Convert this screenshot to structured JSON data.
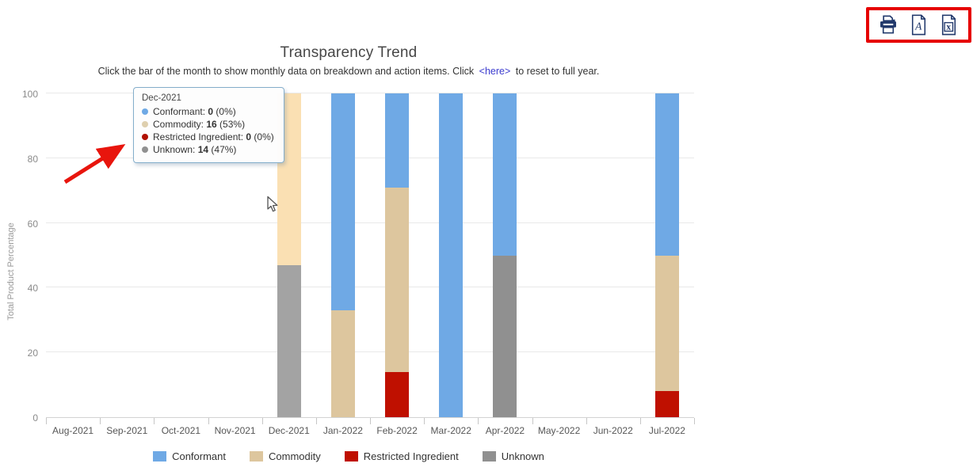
{
  "chart_data": {
    "type": "bar",
    "stacked": true,
    "title": "Transparency Trend",
    "ylabel": "Total Product Percentage",
    "xlabel": "",
    "ylim": [
      0,
      100
    ],
    "yticks": [
      0,
      20,
      40,
      60,
      80,
      100
    ],
    "grid": true,
    "legend_position": "bottom",
    "categories": [
      "Aug-2021",
      "Sep-2021",
      "Oct-2021",
      "Nov-2021",
      "Dec-2021",
      "Jan-2022",
      "Feb-2022",
      "Mar-2022",
      "Apr-2022",
      "May-2022",
      "Jun-2022",
      "Jul-2022"
    ],
    "series": [
      {
        "name": "Conformant",
        "color": "#6fa9e5",
        "values": [
          0,
          0,
          0,
          0,
          0,
          67,
          29,
          100,
          50,
          0,
          0,
          50
        ]
      },
      {
        "name": "Commodity",
        "color": "#ddc69e",
        "values": [
          0,
          0,
          0,
          0,
          53,
          33,
          57,
          0,
          0,
          0,
          0,
          42
        ]
      },
      {
        "name": "Restricted Ingredient",
        "color": "#bf1000",
        "values": [
          0,
          0,
          0,
          0,
          0,
          0,
          14,
          0,
          0,
          0,
          0,
          8
        ]
      },
      {
        "name": "Unknown",
        "color": "#909090",
        "values": [
          0,
          0,
          0,
          0,
          47,
          0,
          0,
          0,
          50,
          0,
          0,
          0
        ]
      }
    ],
    "stack_order_bottom_to_top": [
      "Unknown",
      "Restricted Ingredient",
      "Commodity",
      "Conformant"
    ],
    "highlighted_category": "Dec-2021"
  },
  "subtitle": {
    "text_before": "Click the bar of the month to show monthly data on breakdown and action items. Click",
    "link_text": "<here>",
    "text_after": "to reset to full year."
  },
  "tooltip": {
    "title": "Dec-2021",
    "rows": [
      {
        "label": "Conformant",
        "value": "0",
        "pct": "(0%)",
        "color": "#6fa9e5"
      },
      {
        "label": "Commodity",
        "value": "16",
        "pct": "(53%)",
        "color": "#decfae"
      },
      {
        "label": "Restricted Ingredient",
        "value": "0",
        "pct": "(0%)",
        "color": "#b01000"
      },
      {
        "label": "Unknown",
        "value": "14",
        "pct": "(47%)",
        "color": "#909090"
      }
    ]
  },
  "toolbar": {
    "border_color": "#e60000",
    "icon_color": "#21386b",
    "icons": [
      {
        "name": "print"
      },
      {
        "name": "export-pdf",
        "glyph": "A"
      },
      {
        "name": "export-excel",
        "glyph": "x"
      }
    ]
  }
}
